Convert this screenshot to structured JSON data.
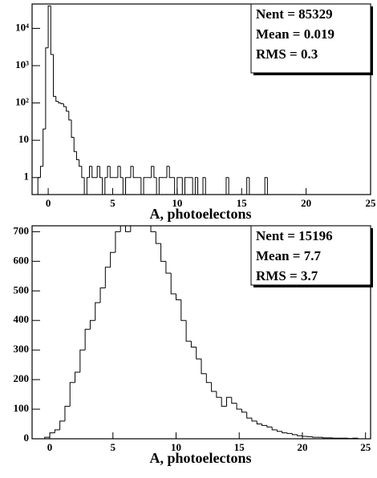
{
  "chart_data": [
    {
      "type": "histogram",
      "log_y": true,
      "xlabel": "A, photoelectons",
      "stats": [
        "Nent = 85329",
        "Mean = 0.019",
        "RMS = 0.3"
      ],
      "bins": [
        -1,
        -0.8,
        -0.6,
        -0.4,
        -0.2,
        0,
        0.2,
        0.4,
        0.6,
        0.8,
        1,
        1.2,
        1.4,
        1.6,
        1.8,
        2,
        2.2,
        2.4,
        2.6,
        2.8,
        3,
        3.2,
        3.4,
        3.6,
        3.8,
        4,
        4.2,
        4.4,
        4.6,
        4.8,
        5,
        5.2,
        5.4,
        5.6,
        5.8,
        6,
        6.2,
        6.4,
        6.6,
        6.8,
        7,
        7.2,
        7.4,
        7.6,
        7.8,
        8,
        8.2,
        8.4,
        8.6,
        8.8,
        9,
        9.2,
        9.4,
        9.6,
        9.8,
        10,
        10.2,
        10.4,
        10.6,
        10.8,
        11,
        11.2,
        11.4,
        11.6,
        11.8,
        12,
        12.2,
        12.4,
        12.6,
        12.8,
        13,
        13.2,
        13.4,
        13.6,
        13.8,
        14,
        14.2,
        14.4,
        14.6,
        14.8,
        15,
        15.2,
        15.4,
        15.6,
        15.8,
        16,
        16.2,
        16.4,
        16.6,
        16.8,
        17,
        17.2,
        17.4,
        17.6,
        17.8,
        18,
        18.2,
        18.4,
        18.6,
        18.8,
        19,
        19.2,
        19.4,
        19.6,
        19.8,
        20,
        20.2,
        20.4,
        20.6,
        20.8,
        21,
        21.2,
        21.4,
        21.6,
        21.8,
        22,
        22.2,
        22.4,
        22.6,
        22.8,
        23,
        23.2,
        23.4,
        23.6,
        23.8,
        24,
        24.2,
        24.4,
        24.6,
        24.8,
        25
      ],
      "values": [
        0,
        1,
        2,
        20,
        3000,
        40000,
        2000,
        150,
        110,
        100,
        95,
        80,
        60,
        35,
        12,
        5,
        3,
        2,
        1,
        0,
        1,
        2,
        1,
        1,
        2,
        1,
        0,
        1,
        2,
        1,
        1,
        1,
        2,
        1,
        0,
        1,
        1,
        2,
        1,
        1,
        1,
        0,
        1,
        1,
        1,
        2,
        1,
        0,
        1,
        1,
        1,
        2,
        1,
        1,
        0,
        1,
        1,
        0,
        1,
        1,
        1,
        0,
        1,
        0,
        0,
        1,
        0,
        0,
        0,
        0,
        0,
        0,
        0,
        0,
        1,
        0,
        0,
        0,
        0,
        0,
        0,
        0,
        1,
        0,
        0,
        0,
        0,
        0,
        0,
        1,
        0,
        0,
        0,
        0,
        0,
        0,
        0,
        0,
        0,
        0,
        0,
        0,
        0,
        0,
        0,
        0,
        0,
        0,
        0,
        0,
        0,
        0,
        0,
        0,
        0,
        0,
        0,
        0,
        0,
        0,
        0,
        0,
        0,
        0,
        0,
        0,
        0,
        0,
        0,
        0
      ],
      "color": "#000000",
      "xlim": [
        -1.25,
        25
      ],
      "xticks": [
        0,
        5,
        10,
        15,
        20,
        25
      ],
      "ylim": [
        0.35,
        45000
      ],
      "yticks": [
        1,
        10,
        {
          "value": 100,
          "label": "10²"
        },
        {
          "value": 1000,
          "label": "10³"
        },
        {
          "value": 10000,
          "label": "10⁴"
        }
      ]
    },
    {
      "type": "histogram",
      "log_y": false,
      "xlabel": "A, photoelectons",
      "stats": [
        "Nent = 15196",
        "Mean = 7.7",
        "RMS = 3.7"
      ],
      "bins": [
        -0.4,
        0,
        0.4,
        0.8,
        1.2,
        1.6,
        2,
        2.4,
        2.8,
        3.2,
        3.6,
        4,
        4.4,
        4.8,
        5.2,
        5.6,
        6,
        6.4,
        6.8,
        7.2,
        7.6,
        8,
        8.4,
        8.8,
        9.2,
        9.6,
        10,
        10.4,
        10.8,
        11.2,
        11.6,
        12,
        12.4,
        12.8,
        13.2,
        13.6,
        14,
        14.4,
        14.8,
        15.2,
        15.6,
        16,
        16.4,
        16.8,
        17.2,
        17.6,
        18,
        18.4,
        18.8,
        19.2,
        19.6,
        20,
        20.4,
        20.8,
        21.2,
        21.6,
        22,
        22.4,
        22.8,
        23.2,
        23.6,
        24,
        24.4
      ],
      "values": [
        5,
        20,
        30,
        60,
        110,
        190,
        225,
        300,
        370,
        400,
        460,
        510,
        580,
        630,
        700,
        730,
        700,
        740,
        755,
        720,
        745,
        700,
        660,
        600,
        560,
        490,
        470,
        400,
        330,
        310,
        270,
        220,
        190,
        160,
        140,
        110,
        140,
        120,
        100,
        90,
        70,
        60,
        50,
        45,
        40,
        30,
        25,
        20,
        18,
        14,
        10,
        8,
        7,
        5,
        5,
        3,
        3,
        2,
        2,
        2,
        1,
        2
      ],
      "color": "#000000",
      "xlim": [
        -1.4,
        25.4
      ],
      "xticks": [
        0,
        5,
        10,
        15,
        20,
        25
      ],
      "ylim": [
        0,
        720
      ],
      "yticks": [
        0,
        100,
        200,
        300,
        400,
        500,
        600,
        700
      ]
    }
  ]
}
